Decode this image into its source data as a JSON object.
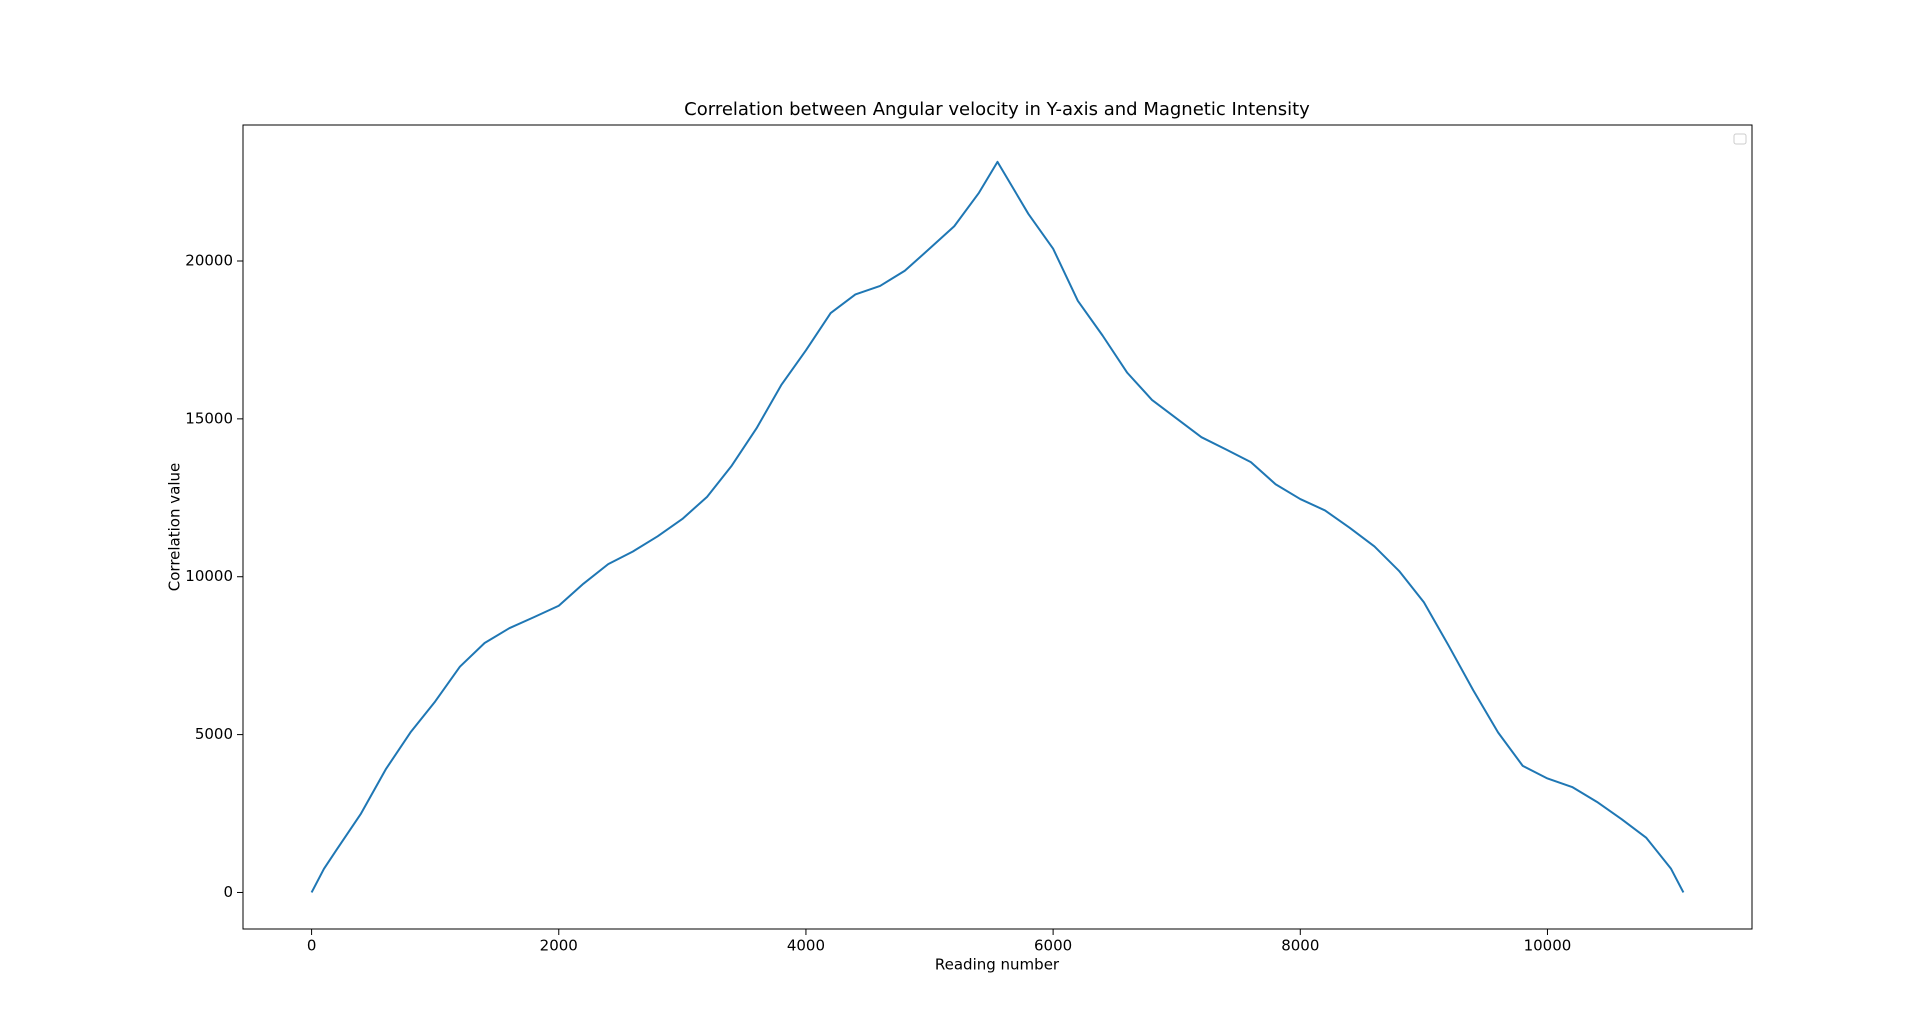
{
  "chart_data": {
    "type": "line",
    "title": "Correlation between Angular velocity in Y-axis and Magnetic Intensity",
    "xlabel": "Reading number",
    "ylabel": "Correlation value",
    "x": [
      0,
      100,
      200,
      400,
      600,
      800,
      1000,
      1200,
      1400,
      1600,
      1800,
      2000,
      2200,
      2400,
      2600,
      2800,
      3000,
      3200,
      3400,
      3600,
      3800,
      4000,
      4200,
      4400,
      4600,
      4800,
      5000,
      5200,
      5400,
      5550,
      5800,
      6000,
      6200,
      6400,
      6600,
      6800,
      7000,
      7200,
      7400,
      7600,
      7800,
      8000,
      8200,
      8400,
      8600,
      8800,
      9000,
      9200,
      9400,
      9600,
      9800,
      10000,
      10200,
      10400,
      10600,
      10800,
      11000,
      11100
    ],
    "series": [
      {
        "color": "#1f77b4",
        "values": [
          0,
          750,
          1340,
          2500,
          3900,
          5070,
          6050,
          7150,
          7900,
          8370,
          8720,
          9080,
          9780,
          10400,
          10800,
          11280,
          11830,
          12530,
          13520,
          14700,
          16070,
          17170,
          18350,
          18940,
          19210,
          19690,
          20390,
          21100,
          22160,
          23140,
          21490,
          20390,
          18740,
          17640,
          16460,
          15600,
          15010,
          14420,
          14030,
          13630,
          12930,
          12460,
          12100,
          11550,
          10960,
          10180,
          9190,
          7820,
          6400,
          5070,
          4010,
          3610,
          3340,
          2870,
          2320,
          1730,
          750,
          0
        ]
      }
    ],
    "xlim": [
      -555,
      11655
    ],
    "ylim": [
      -1157,
      24307
    ],
    "xticks": [
      0,
      2000,
      4000,
      6000,
      8000,
      10000
    ],
    "yticks": [
      0,
      5000,
      10000,
      15000,
      20000
    ]
  }
}
